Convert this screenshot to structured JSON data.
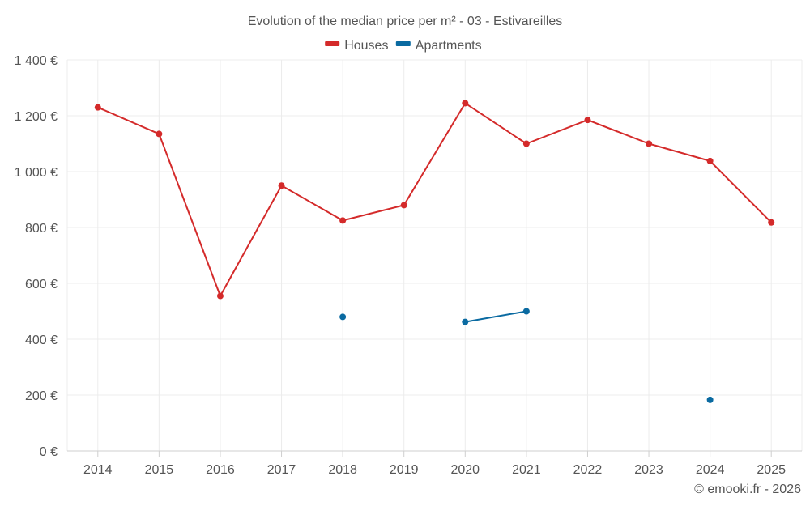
{
  "chart_data": {
    "type": "line",
    "title": "Evolution of the median price per m² - 03 - Estivareilles",
    "categories": [
      "2014",
      "2015",
      "2016",
      "2017",
      "2018",
      "2019",
      "2020",
      "2021",
      "2022",
      "2023",
      "2024",
      "2025"
    ],
    "series": [
      {
        "name": "Houses",
        "color": "#d42a2a",
        "values": [
          1230,
          1135,
          555,
          950,
          825,
          880,
          1245,
          1100,
          1185,
          1100,
          1038,
          818
        ]
      },
      {
        "name": "Apartments",
        "color": "#0a6aa1",
        "values": [
          null,
          null,
          null,
          null,
          480,
          null,
          462,
          500,
          null,
          null,
          183,
          null
        ]
      }
    ],
    "ylim": [
      0,
      1400
    ],
    "yticks": [
      0,
      200,
      400,
      600,
      800,
      1000,
      1200,
      1400
    ],
    "ytick_labels": [
      "0 €",
      "200 €",
      "400 €",
      "600 €",
      "800 €",
      "1 000 €",
      "1 200 €",
      "1 400 €"
    ],
    "grid": true,
    "legend_position": "top-center"
  },
  "credit": "© emooki.fr - 2026"
}
